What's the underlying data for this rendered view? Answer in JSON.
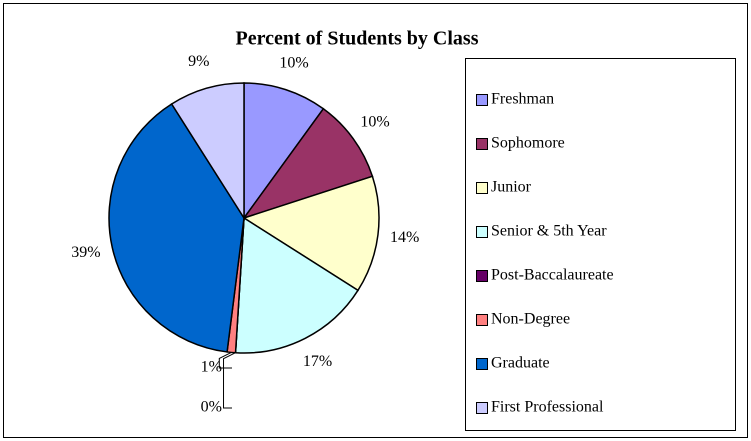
{
  "chart_data": {
    "type": "pie",
    "title": "Percent of Students by Class",
    "categories": [
      "Freshman",
      "Sophomore",
      "Junior",
      "Senior & 5th Year",
      "Post-Baccalaureate",
      "Non-Degree",
      "Graduate",
      "First Professional"
    ],
    "values": [
      10,
      10,
      14,
      17,
      0,
      1,
      39,
      9
    ],
    "value_labels": [
      "10%",
      "10%",
      "14%",
      "17%",
      "0%",
      "1%",
      "39%",
      "9%"
    ],
    "colors": [
      "#9999ff",
      "#993366",
      "#ffffcc",
      "#ccffff",
      "#660066",
      "#ff8080",
      "#0066cc",
      "#ccccff"
    ],
    "legend": "right"
  }
}
